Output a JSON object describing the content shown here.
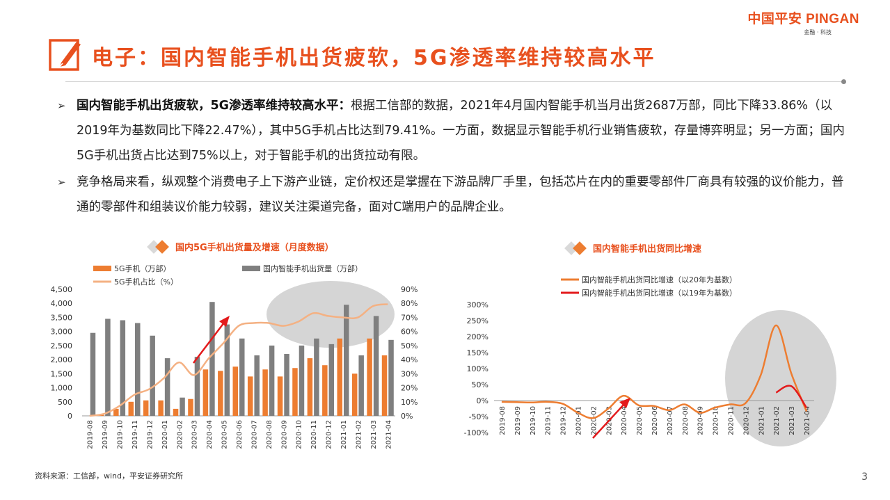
{
  "brand": {
    "logo_text": "中国平安 PINGAN",
    "tagline": "金融 · 科技",
    "brand_color": "#e8501e"
  },
  "slide": {
    "title": "电子：国内智能手机出货疲软，5G渗透率维持较高水平",
    "title_icon": "pencil-edit-icon",
    "page_number": "3",
    "source": "资料来源：工信部，wind，平安证券研究所"
  },
  "bullets": [
    {
      "heading": "国内智能手机出货疲软，5G渗透率维持较高水平：",
      "body": "根据工信部的数据，2021年4月国内智能手机当月出货2687万部，同比下降33.86%（以2019年为基数同比下降22.47%），其中5G手机占比达到79.41%。一方面，数据显示智能手机行业销售疲软，存量博弈明显；另一方面；国内5G手机出货占比达到75%以上，对于智能手机的出货拉动有限。"
    },
    {
      "heading": "",
      "body": "竞争格局来看，纵观整个消费电子上下游产业链，定价权还是掌握在下游品牌厂手里，包括芯片在内的重要零部件厂商具有较强的议价能力，普通的零部件和组装议价能力较弱，建议关注渠道完备，面对C端用户的品牌企业。"
    }
  ],
  "chart_data": [
    {
      "type": "bar",
      "title": "国内5G手机出货量及增速（月度数据）",
      "categories": [
        "2019-08",
        "2019-09",
        "2019-10",
        "2019-11",
        "2019-12",
        "2020-01",
        "2020-02",
        "2020-03",
        "2020-04",
        "2020-05",
        "2020-06",
        "2020-07",
        "2020-08",
        "2020-09",
        "2020-10",
        "2020-11",
        "2020-12",
        "2021-01",
        "2021-02",
        "2021-03",
        "2021-04"
      ],
      "series": [
        {
          "name": "5G手机（万部）",
          "type": "bar",
          "axis": "left",
          "color": "#ed7d31",
          "values": [
            0,
            50,
            250,
            500,
            550,
            550,
            250,
            600,
            1650,
            1600,
            1750,
            1400,
            1650,
            1400,
            1700,
            2050,
            1800,
            2750,
            1500,
            2750,
            2150
          ]
        },
        {
          "name": "国内智能手机出货量（万部）",
          "type": "bar",
          "axis": "left",
          "color": "#7f7f7f",
          "values": [
            2950,
            3450,
            3400,
            3300,
            2850,
            2050,
            650,
            2100,
            4050,
            3250,
            2750,
            2150,
            2500,
            2200,
            2500,
            2750,
            2550,
            3950,
            2150,
            3550,
            2700
          ]
        },
        {
          "name": "5G手机占比（%）",
          "type": "line",
          "axis": "right",
          "color": "#f4b183",
          "values": [
            0,
            1.5,
            7,
            15,
            19,
            27,
            38,
            29,
            41,
            52,
            64,
            66,
            66,
            64,
            67,
            73,
            71,
            70,
            70,
            78,
            79.4
          ]
        }
      ],
      "ylim_left": [
        0,
        4500
      ],
      "yticks_left": [
        "4,500",
        "4,000",
        "3,500",
        "3,000",
        "2,500",
        "2,000",
        "1,500",
        "1,000",
        "500",
        "0"
      ],
      "ylim_right": [
        0,
        90
      ],
      "yticks_right": [
        "90%",
        "80%",
        "70%",
        "60%",
        "50%",
        "40%",
        "30%",
        "20%",
        "10%",
        "0%"
      ],
      "annotations": [
        "red-arrow-2020-03-to-2020-05",
        "grey-ellipse-highlight-2020-10-to-2021-04"
      ]
    },
    {
      "type": "line",
      "title": "国内智能手机出货同比增速",
      "categories": [
        "2019-08",
        "2019-09",
        "2019-10",
        "2019-11",
        "2019-12",
        "2020-01",
        "2020-02",
        "2020-03",
        "2020-04",
        "2020-05",
        "2020-06",
        "2020-07",
        "2020-08",
        "2020-09",
        "2020-10",
        "2020-11",
        "2020-12",
        "2021-01",
        "2021-02",
        "2021-03",
        "2021-04"
      ],
      "series": [
        {
          "name": "国内智能手机出货同比增速（以20年为基数）",
          "color": "#ed7d31",
          "values": [
            -4,
            -5,
            -6,
            -4,
            -10,
            -38,
            -55,
            -25,
            15,
            -15,
            -17,
            -30,
            -12,
            -38,
            -22,
            -12,
            -8,
            80,
            235,
            85,
            -33.86
          ]
        },
        {
          "name": "国内智能手机出货同比增速（以19年为基数）",
          "color": "#e31a1c",
          "values": [
            null,
            null,
            null,
            null,
            null,
            null,
            null,
            null,
            null,
            null,
            null,
            null,
            null,
            null,
            null,
            null,
            null,
            null,
            25,
            45,
            -22.47
          ]
        }
      ],
      "ylim": [
        -100,
        300
      ],
      "yticks": [
        "300%",
        "250%",
        "200%",
        "150%",
        "100%",
        "50%",
        "0%",
        "-50%",
        "-100%"
      ],
      "annotations": [
        "red-arrow-2020-02-to-2020-04",
        "grey-ellipse-highlight-2021-01-to-2021-04"
      ]
    }
  ]
}
